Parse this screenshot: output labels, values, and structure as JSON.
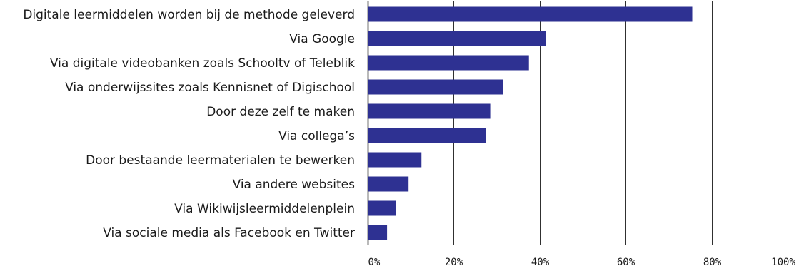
{
  "chart_data": {
    "type": "bar",
    "orientation": "horizontal",
    "categories": [
      "Digitale leermiddelen worden bij de methode geleverd",
      "Via Google",
      "Via digitale videobanken zoals Schooltv of Teleblik",
      "Via onderwijssites zoals Kennisnet of Digischool",
      "Door deze zelf te maken",
      "Via collega’s",
      "Door bestaande leermaterialen te bewerken",
      "Via andere websites",
      "Via Wikiwijsleermiddelenplein",
      "Via sociale media als Facebook en Twitter"
    ],
    "values": [
      75.5,
      41.5,
      37.5,
      31.5,
      28.5,
      27.5,
      12.5,
      9.5,
      6.5,
      4.5
    ],
    "xlim": [
      0,
      100
    ],
    "xticks": [
      0,
      20,
      40,
      60,
      80,
      100
    ],
    "xtick_labels": [
      "0%",
      "20%",
      "40%",
      "60%",
      "80%",
      "100%"
    ],
    "grid": "vertical",
    "bar_color": "#2e3192",
    "grid_color": "#1a1a1a",
    "title": "",
    "xlabel": "",
    "ylabel": ""
  }
}
